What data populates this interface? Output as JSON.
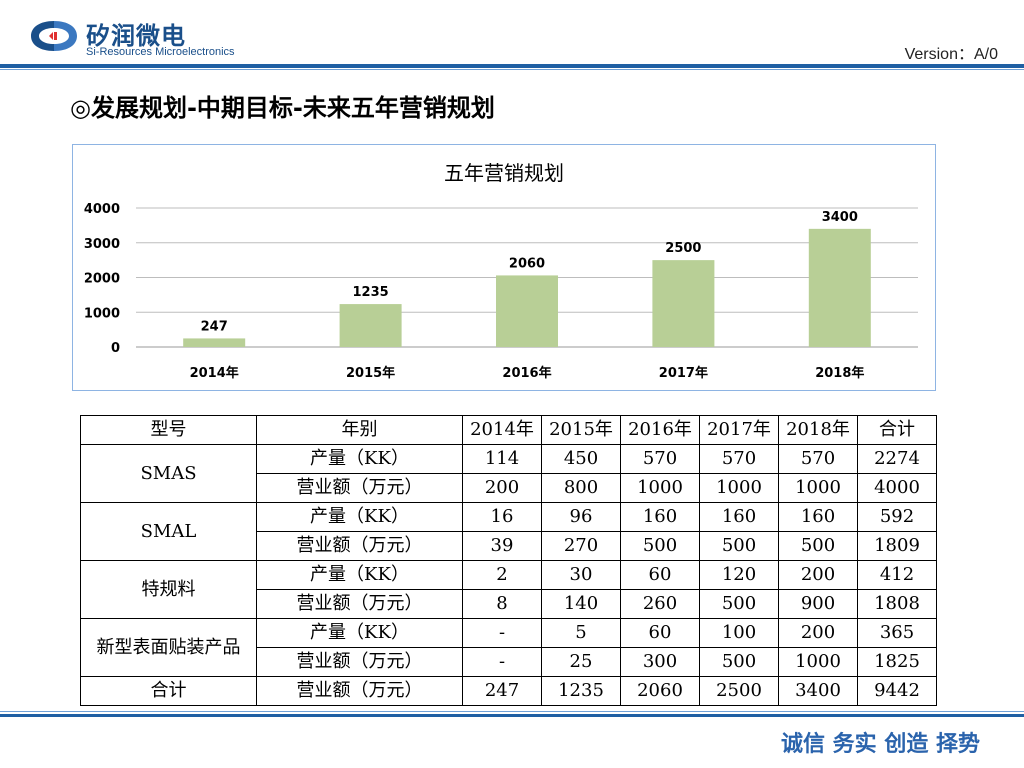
{
  "header": {
    "logo_cn": "矽润微电",
    "logo_en": "Si-Resources Microelectronics",
    "version": "Version：A/0"
  },
  "title": "◎发展规划-中期目标-未来五年营销规划",
  "chart_data": {
    "type": "bar",
    "title": "五年营销规划",
    "categories": [
      "2014年",
      "2015年",
      "2016年",
      "2017年",
      "2018年"
    ],
    "values": [
      247,
      1235,
      2060,
      2500,
      3400
    ],
    "ylim": [
      0,
      4000
    ],
    "yticks": [
      0,
      1000,
      2000,
      3000,
      4000
    ],
    "grid": true,
    "bar_color": "#b8cf96"
  },
  "table": {
    "header": [
      "型号",
      "年别",
      "2014年",
      "2015年",
      "2016年",
      "2017年",
      "2018年",
      "合计"
    ],
    "groups": [
      {
        "model": "SMAS",
        "rows": [
          {
            "label": "产量（KK）",
            "values": [
              "114",
              "450",
              "570",
              "570",
              "570",
              "2274"
            ]
          },
          {
            "label": "营业额（万元）",
            "values": [
              "200",
              "800",
              "1000",
              "1000",
              "1000",
              "4000"
            ]
          }
        ]
      },
      {
        "model": "SMAL",
        "rows": [
          {
            "label": "产量（KK）",
            "values": [
              "16",
              "96",
              "160",
              "160",
              "160",
              "592"
            ]
          },
          {
            "label": "营业额（万元）",
            "values": [
              "39",
              "270",
              "500",
              "500",
              "500",
              "1809"
            ]
          }
        ]
      },
      {
        "model": "特规料",
        "rows": [
          {
            "label": "产量（KK）",
            "values": [
              "2",
              "30",
              "60",
              "120",
              "200",
              "412"
            ]
          },
          {
            "label": "营业额（万元）",
            "values": [
              "8",
              "140",
              "260",
              "500",
              "900",
              "1808"
            ]
          }
        ]
      },
      {
        "model": "新型表面贴装产品",
        "rows": [
          {
            "label": "产量（KK）",
            "values": [
              "-",
              "5",
              "60",
              "100",
              "200",
              "365"
            ]
          },
          {
            "label": "营业额（万元）",
            "values": [
              "-",
              "25",
              "300",
              "500",
              "1000",
              "1825"
            ]
          }
        ]
      }
    ],
    "total": {
      "model": "合计",
      "label": "营业额（万元）",
      "values": [
        "247",
        "1235",
        "2060",
        "2500",
        "3400",
        "9442"
      ]
    }
  },
  "footer": {
    "slogan": "诚信 务实 创造 择势"
  }
}
